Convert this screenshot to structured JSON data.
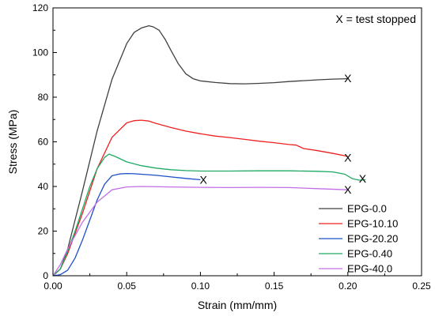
{
  "chart_data": {
    "type": "line",
    "xlabel": "Strain (mm/mm)",
    "ylabel": "Stress (MPa)",
    "xlim": [
      0,
      0.25
    ],
    "ylim": [
      0,
      120
    ],
    "xticks": [
      0.0,
      0.05,
      0.1,
      0.15,
      0.2,
      0.25
    ],
    "xtick_labels": [
      "0.00",
      "0.05",
      "0.10",
      "0.15",
      "0.20",
      "0.25"
    ],
    "yticks": [
      0,
      20,
      40,
      60,
      80,
      100,
      120
    ],
    "ytick_labels": [
      "0",
      "20",
      "40",
      "60",
      "80",
      "100",
      "120"
    ],
    "grid": false,
    "legend_position": "bottom-right",
    "annotation": "X = test stopped",
    "stop_marker_symbol": "X",
    "series": [
      {
        "name": "EPG-0.0",
        "color": "#404040",
        "x": [
          0.0,
          0.005,
          0.01,
          0.02,
          0.03,
          0.04,
          0.05,
          0.055,
          0.06,
          0.065,
          0.068,
          0.072,
          0.076,
          0.08,
          0.085,
          0.09,
          0.095,
          0.1,
          0.11,
          0.12,
          0.13,
          0.14,
          0.15,
          0.16,
          0.17,
          0.18,
          0.19,
          0.2
        ],
        "y": [
          0,
          3,
          12,
          38,
          65,
          88,
          104,
          109,
          111,
          112,
          111.5,
          110,
          106,
          101,
          95,
          90.5,
          88.3,
          87.3,
          86.6,
          86.1,
          86,
          86.2,
          86.5,
          87,
          87.4,
          87.8,
          88.1,
          88.3
        ],
        "stop": [
          0.2,
          88.5
        ]
      },
      {
        "name": "EPG-10.10",
        "color": "#ee2020",
        "x": [
          0.0,
          0.005,
          0.01,
          0.02,
          0.03,
          0.04,
          0.05,
          0.055,
          0.06,
          0.065,
          0.07,
          0.08,
          0.09,
          0.1,
          0.11,
          0.12,
          0.13,
          0.14,
          0.15,
          0.16,
          0.165,
          0.17,
          0.18,
          0.19,
          0.2
        ],
        "y": [
          0,
          3,
          10,
          28,
          48,
          62,
          68.5,
          69.5,
          69.7,
          69.3,
          68.2,
          66.4,
          64.8,
          63.6,
          62.6,
          61.9,
          61.1,
          60.3,
          59.6,
          58.8,
          58.5,
          57,
          56,
          54.8,
          53.5
        ],
        "stop": [
          0.2,
          53
        ]
      },
      {
        "name": "EPG-20.20",
        "color": "#1e4fc8",
        "x": [
          0.0,
          0.005,
          0.01,
          0.015,
          0.02,
          0.025,
          0.03,
          0.035,
          0.04,
          0.045,
          0.05,
          0.055,
          0.06,
          0.07,
          0.08,
          0.09,
          0.1
        ],
        "y": [
          0,
          0.5,
          2.5,
          8,
          16,
          25,
          34,
          41,
          44.8,
          45.6,
          45.8,
          45.7,
          45.5,
          45,
          44.3,
          43.6,
          43
        ],
        "stop": [
          0.102,
          43
        ]
      },
      {
        "name": "EPG-0.40",
        "color": "#1eaa64",
        "x": [
          0.0,
          0.005,
          0.01,
          0.015,
          0.02,
          0.025,
          0.03,
          0.035,
          0.038,
          0.042,
          0.05,
          0.06,
          0.07,
          0.08,
          0.09,
          0.1,
          0.12,
          0.14,
          0.16,
          0.18,
          0.19,
          0.198,
          0.203,
          0.208,
          0.212
        ],
        "y": [
          0,
          3,
          11,
          20,
          30,
          40,
          48,
          53,
          54.5,
          53.5,
          51,
          49.3,
          48.2,
          47.5,
          47.1,
          46.9,
          46.9,
          47,
          47,
          46.8,
          46.5,
          45.5,
          43.5,
          42.8,
          43
        ],
        "stop": [
          0.21,
          43.5
        ]
      },
      {
        "name": "EPG-40.0",
        "color": "#c36ee6",
        "x": [
          0.0,
          0.005,
          0.01,
          0.02,
          0.03,
          0.04,
          0.05,
          0.06,
          0.08,
          0.1,
          0.12,
          0.14,
          0.16,
          0.18,
          0.2
        ],
        "y": [
          0,
          5,
          12,
          24,
          33,
          38.5,
          39.8,
          40,
          39.8,
          39.6,
          39.5,
          39.6,
          39.5,
          39,
          38.5
        ],
        "stop": [
          0.2,
          38.5
        ]
      }
    ]
  }
}
